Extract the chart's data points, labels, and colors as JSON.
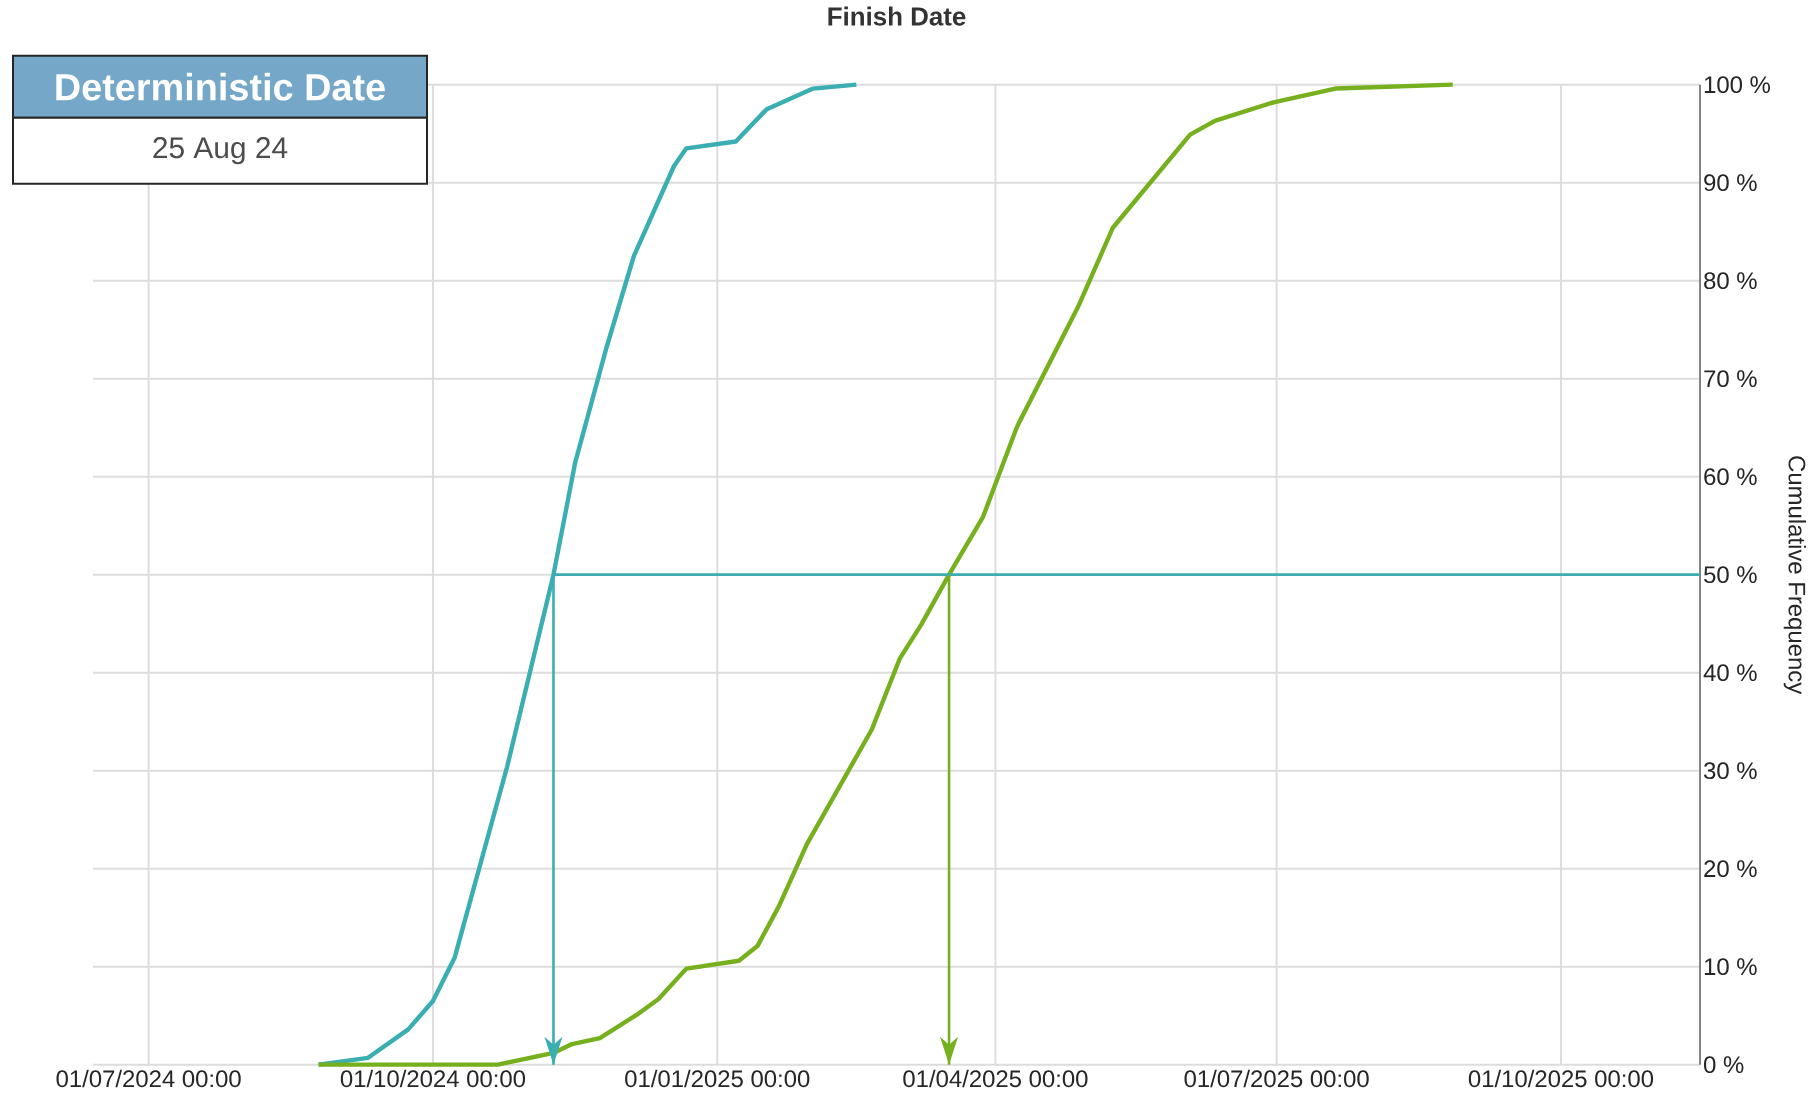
{
  "chart_data": {
    "type": "line",
    "title": "Finish Date",
    "ylabel": "Cumulative Frequency",
    "annotations": [
      "Deterministic Date",
      "25 Aug 24"
    ],
    "series": [
      {
        "color": "#3aaeb0",
        "x": [
          "2024-08-25",
          "2024-09-10",
          "2024-09-23",
          "2024-10-01",
          "2024-10-08",
          "2024-10-25",
          "2024-11-09",
          "2024-11-16",
          "2024-11-26",
          "2024-12-05",
          "2024-12-18",
          "2024-12-22",
          "2025-01-07",
          "2025-01-17",
          "2025-02-01",
          "2025-02-15"
        ],
        "values": [
          0,
          0.7,
          3.6,
          6.5,
          10.9,
          30.4,
          50,
          61.4,
          73,
          82.5,
          91.7,
          93.5,
          94.2,
          97.5,
          99.6,
          100
        ]
      },
      {
        "color": "#76b01e",
        "x": [
          "2024-08-25",
          "2024-10-22",
          "2024-11-09",
          "2024-11-15",
          "2024-11-24",
          "2024-12-06",
          "2024-12-13",
          "2024-12-22",
          "2025-01-08",
          "2025-01-14",
          "2025-01-21",
          "2025-01-30",
          "2025-02-20",
          "2025-03-01",
          "2025-03-08",
          "2025-03-17",
          "2025-03-28",
          "2025-04-08",
          "2025-04-28",
          "2025-05-09",
          "2025-06-03",
          "2025-06-11",
          "2025-06-30",
          "2025-07-20",
          "2025-08-27"
        ],
        "values": [
          0,
          0,
          1.2,
          2.1,
          2.7,
          5.1,
          6.7,
          9.8,
          10.6,
          12.1,
          16.2,
          22.5,
          34.2,
          41.4,
          44.9,
          50,
          55.9,
          65.1,
          77.5,
          85.4,
          94.9,
          96.3,
          98.2,
          99.6,
          100
        ]
      }
    ],
    "ref_lines": [
      {
        "axis": "y",
        "value": 50,
        "color": "#3aaeb0"
      },
      {
        "axis": "x",
        "value": "2024-11-09",
        "color": "#3aaeb0"
      },
      {
        "axis": "x",
        "value": "2025-03-17",
        "color": "#76b01e"
      }
    ],
    "xlim": [
      "2024-06-13",
      "2025-11-15"
    ],
    "xticks": [
      {
        "value": "2024-07-01",
        "label": "01/07/2024 00:00"
      },
      {
        "value": "2024-10-01",
        "label": "01/10/2024 00:00"
      },
      {
        "value": "2025-01-01",
        "label": "01/01/2025 00:00"
      },
      {
        "value": "2025-04-01",
        "label": "01/04/2025 00:00"
      },
      {
        "value": "2025-07-01",
        "label": "01/07/2025 00:00"
      },
      {
        "value": "2025-10-01",
        "label": "01/10/2025 00:00"
      }
    ],
    "ylim": [
      0,
      100
    ],
    "yticks": [
      {
        "value": 0,
        "label": "0 %"
      },
      {
        "value": 10,
        "label": "10 %"
      },
      {
        "value": 20,
        "label": "20 %"
      },
      {
        "value": 30,
        "label": "30 %"
      },
      {
        "value": 40,
        "label": "40 %"
      },
      {
        "value": 50,
        "label": "50 %"
      },
      {
        "value": 60,
        "label": "60 %"
      },
      {
        "value": 70,
        "label": "70 %"
      },
      {
        "value": 80,
        "label": "80 %"
      },
      {
        "value": 90,
        "label": "90 %"
      },
      {
        "value": 100,
        "label": "100 %"
      }
    ],
    "grid": true
  }
}
